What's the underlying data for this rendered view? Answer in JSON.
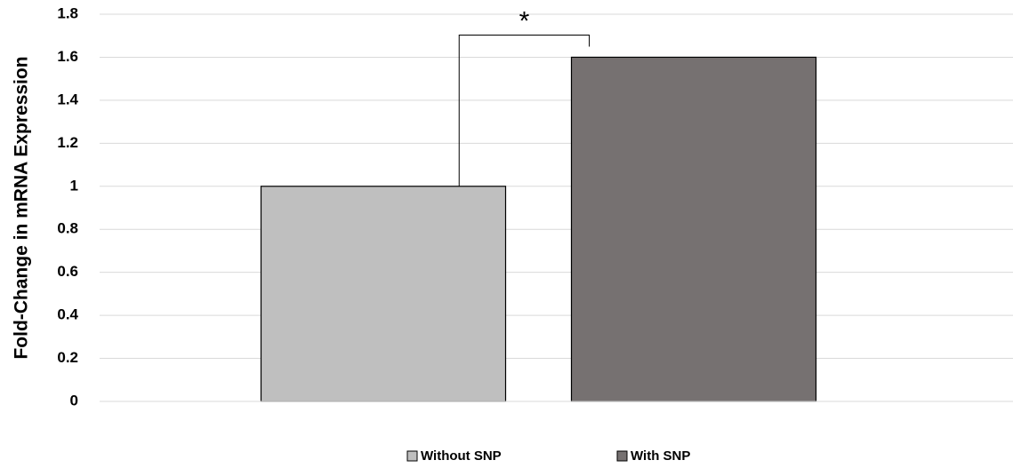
{
  "chart_data": {
    "type": "bar",
    "ylabel": "Fold-Change in mRNA Expression",
    "categories": [
      null
    ],
    "series": [
      {
        "name": "Without SNP",
        "color": "#bfbfbf",
        "values": [
          1.0
        ]
      },
      {
        "name": "With SNP",
        "color": "#767171",
        "values": [
          1.6
        ]
      }
    ],
    "annotation": "*",
    "ylim": [
      0,
      1.8
    ],
    "yticks": [
      0,
      0.2,
      0.4,
      0.6,
      0.8,
      1,
      1.2,
      1.4,
      1.6,
      1.8
    ],
    "grid": true,
    "legend": "bottom"
  }
}
